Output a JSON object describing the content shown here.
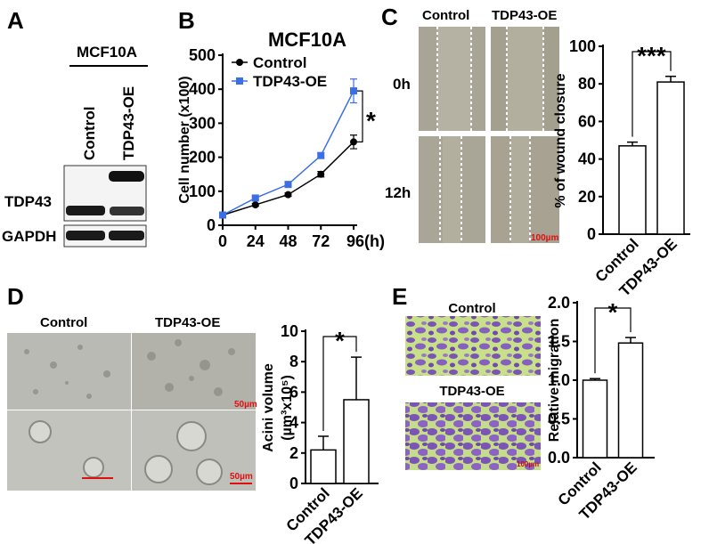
{
  "panel_labels": [
    "A",
    "B",
    "C",
    "D",
    "E"
  ],
  "blot": {
    "cell_line": "MCF10A",
    "lanes": [
      "Control",
      "TDP43-OE"
    ],
    "rows": [
      "TDP43",
      "GAPDH"
    ]
  },
  "wound": {
    "columns": [
      "Control",
      "TDP43-OE"
    ],
    "rows": [
      "0h",
      "12h"
    ],
    "scale_bar": "100µm"
  },
  "acini": {
    "columns": [
      "Control",
      "TDP43-OE"
    ],
    "scale_bars": [
      "50µm",
      "50µm"
    ]
  },
  "transwell": {
    "rows": [
      "Control",
      "TDP43-OE"
    ],
    "scale_bar": "100µm"
  },
  "chart_data": [
    {
      "type": "line",
      "title": "MCF10A",
      "ylabel": "Cell number (x100)",
      "x": [
        0,
        24,
        48,
        72,
        96
      ],
      "xlim": [
        0,
        96
      ],
      "xticks": [
        0,
        24,
        48,
        72,
        {
          "value": 96,
          "label": "96(h)"
        }
      ],
      "ylim": [
        0,
        500
      ],
      "yticks": [
        0,
        100,
        200,
        300,
        400,
        500
      ],
      "series": [
        {
          "name": "Control",
          "color": "#000000",
          "marker": "circle",
          "values": [
            30,
            60,
            90,
            150,
            245
          ],
          "errors": [
            3,
            4,
            5,
            8,
            20
          ]
        },
        {
          "name": "TDP43-OE",
          "color": "#3b6fe3",
          "marker": "square",
          "values": [
            30,
            80,
            120,
            205,
            395
          ],
          "errors": [
            3,
            5,
            6,
            8,
            35
          ]
        }
      ],
      "legend": "upper left",
      "annotation": "*"
    },
    {
      "type": "bar",
      "ylabel": "% of wound closure",
      "categories": [
        "Control",
        "TDP43-OE"
      ],
      "values": [
        47,
        81
      ],
      "errors": [
        2,
        3
      ],
      "color": "#ffffff",
      "ylim": [
        0,
        100
      ],
      "yticks": [
        0,
        20,
        40,
        60,
        80,
        100
      ],
      "annotation": "***"
    },
    {
      "type": "bar",
      "ylabel": [
        "Acini volume",
        "(µm³x10⁵)"
      ],
      "categories": [
        "Control",
        "TDP43-OE"
      ],
      "values": [
        2.2,
        5.5
      ],
      "errors": [
        0.9,
        2.8
      ],
      "color": "#ffffff",
      "ylim": [
        0,
        10
      ],
      "yticks": [
        0,
        2,
        4,
        6,
        8,
        10
      ],
      "annotation": "*"
    },
    {
      "type": "bar",
      "ylabel": "Relative migration",
      "categories": [
        "Control",
        "TDP43-OE"
      ],
      "values": [
        1.0,
        1.48
      ],
      "errors": [
        0.02,
        0.07
      ],
      "color": "#ffffff",
      "ylim": [
        0,
        2.0
      ],
      "yticks": [
        {
          "value": 0,
          "label": "0.0"
        },
        0.5,
        {
          "value": 1,
          "label": "1.0"
        },
        1.5,
        {
          "value": 2,
          "label": "2.0"
        }
      ],
      "annotation": "*"
    }
  ]
}
